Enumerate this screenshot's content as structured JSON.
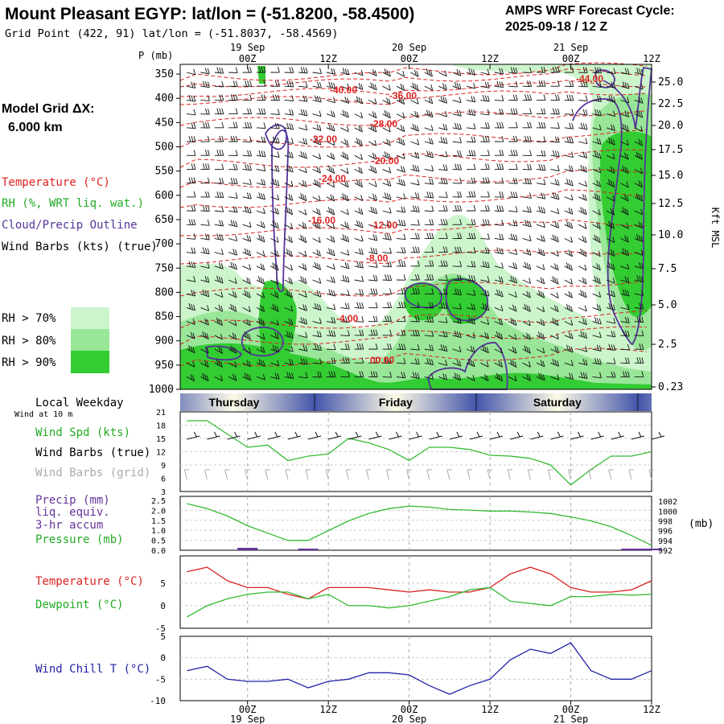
{
  "header": {
    "title": "Mount Pleasant EGYP:  lat/lon = (-51.8200, -58.4500)",
    "grid_point": "Grid Point (422, 91) lat/lon = (-51.8037, -58.4569)",
    "cycle_label": "AMPS WRF Forecast Cycle:",
    "cycle_value": "2025-09-18 / 12  Z"
  },
  "model_grid": {
    "label": "Model Grid ΔX:",
    "value": "6.000 km"
  },
  "legend_upper": {
    "temperature": "Temperature (°C)",
    "rh": "RH (%, WRT liq. wat.)",
    "cloud": "Cloud/Precip Outline",
    "wind": "Wind Barbs (kts) (true)",
    "rh70": "RH > 70%",
    "rh80": "RH > 80%",
    "rh90": "RH > 90%"
  },
  "colors": {
    "temperature": "#dd2222",
    "rh70": "#ccf5cc",
    "rh80": "#99e699",
    "rh90": "#33cc33",
    "cloud_outline": "#553399",
    "wind_speed": "#33bb33",
    "wind_barb": "#111111",
    "wind_barb_grid": "#aaaaaa",
    "precip": "#663399",
    "pressure": "#33bb33",
    "dewpoint": "#33bb33",
    "wind_chill": "#2222aa",
    "day_band": "#4455aa"
  },
  "time_axis": {
    "top_dates": [
      "19 Sep",
      "20 Sep",
      "21 Sep"
    ],
    "ticks": [
      "00Z",
      "12Z",
      "00Z",
      "12Z",
      "00Z",
      "12Z"
    ],
    "bottom_ticks": [
      "00Z",
      "12Z",
      "00Z",
      "12Z",
      "00Z",
      "12Z"
    ],
    "bottom_dates": [
      "19 Sep",
      "20 Sep",
      "21 Sep"
    ]
  },
  "cross_section": {
    "pressure_axis_label": "P (mb)",
    "pressure_levels": [
      "350",
      "400",
      "450",
      "500",
      "550",
      "600",
      "650",
      "700",
      "750",
      "800",
      "850",
      "900",
      "950",
      "1000"
    ],
    "height_axis_label": "Kft MSL",
    "height_ticks": [
      "25.0",
      "22.5",
      "20.0",
      "17.5",
      "15.0",
      "12.5",
      "10.0",
      "7.5",
      "5.0",
      "2.5",
      "0.23"
    ],
    "temp_labels": [
      "-44.00",
      "-40.00",
      "-36.00",
      "-32.00",
      "-28.00",
      "-24.00",
      "-20.00",
      "-16.00",
      "-12.00",
      "-8.00",
      "-4.00",
      "00.00"
    ]
  },
  "day_band": {
    "label": "Local Weekday",
    "days": [
      "Thursday",
      "Friday",
      "Saturday"
    ]
  },
  "panels": {
    "wind": {
      "wind_at": "Wind at 10 m",
      "label_spd": "Wind Spd (kts)",
      "label_barbs": "Wind Barbs (true)",
      "label_grid": "Wind Barbs (grid)",
      "y_ticks": [
        "21",
        "18",
        "15",
        "12",
        "9",
        "6",
        "3"
      ]
    },
    "precip": {
      "label1": "Precip (mm)",
      "label2": "liq. equiv.",
      "label3": "3-hr accum",
      "label_pressure": "Pressure (mb)",
      "y_ticks": [
        "2.5",
        "2.0",
        "1.5",
        "1.0",
        "0.5",
        "0.0"
      ],
      "y2_ticks": [
        "1002",
        "1000",
        "998",
        "996",
        "994",
        "992"
      ],
      "y2_unit": "(mb)"
    },
    "temp": {
      "label_temp": "Temperature (°C)",
      "label_dew": "Dewpoint (°C)",
      "y_ticks": [
        "5",
        "0",
        "-5"
      ]
    },
    "chill": {
      "label": "Wind Chill T (°C)",
      "y_ticks": [
        "5",
        "0",
        "-5",
        "-10"
      ]
    }
  },
  "chart_data": [
    {
      "type": "line",
      "name": "wind_speed_10m",
      "x_hours": [
        -9,
        -6,
        -3,
        0,
        3,
        6,
        9,
        12,
        15,
        18,
        21,
        24,
        27,
        30,
        33,
        36,
        39,
        42,
        45,
        48,
        51,
        54,
        57,
        60
      ],
      "series": [
        {
          "name": "Wind Spd (kts)",
          "values": [
            19,
            19,
            16,
            13,
            13.5,
            10,
            11,
            11.5,
            15,
            14,
            12.5,
            10,
            13,
            13,
            12.5,
            11.2,
            11,
            10.5,
            9,
            4.5,
            8,
            11,
            11,
            12
          ]
        }
      ],
      "ylim": [
        3,
        21
      ]
    },
    {
      "type": "line",
      "name": "pressure_precip",
      "x_hours": [
        -9,
        -6,
        -3,
        0,
        3,
        6,
        9,
        12,
        15,
        18,
        21,
        24,
        27,
        30,
        33,
        36,
        39,
        42,
        45,
        48,
        51,
        54,
        57,
        60
      ],
      "series": [
        {
          "name": "Pressure (mb)",
          "values": [
            1001.5,
            1000.5,
            999,
            997,
            995.5,
            994,
            994,
            996,
            998,
            999.5,
            1000.5,
            1001,
            1000.8,
            1000.3,
            1000.2,
            1000,
            1000,
            999.8,
            999.5,
            998.8,
            998,
            996.8,
            995,
            993
          ]
        },
        {
          "name": "Precip (mm)",
          "values": [
            0,
            0,
            0,
            0.12,
            0,
            0,
            0.08,
            0,
            0,
            0,
            0,
            0,
            0,
            0,
            0,
            0,
            0,
            0,
            0,
            0,
            0,
            0,
            0.08,
            0.08
          ]
        }
      ],
      "y2lim": [
        992,
        1003
      ],
      "ylim": [
        0,
        2.7
      ]
    },
    {
      "type": "line",
      "name": "temperature_dewpoint",
      "x_hours": [
        -9,
        -6,
        -3,
        0,
        3,
        6,
        9,
        12,
        15,
        18,
        21,
        24,
        27,
        30,
        33,
        36,
        39,
        42,
        45,
        48,
        51,
        54,
        57,
        60
      ],
      "series": [
        {
          "name": "Temperature (°C)",
          "values": [
            7.5,
            8.5,
            5.5,
            4,
            4,
            2.5,
            1.5,
            4,
            4,
            4,
            3.5,
            3,
            3.5,
            3,
            3,
            4,
            7,
            8.5,
            7,
            4,
            3,
            3,
            3.5,
            5.5
          ]
        },
        {
          "name": "Dewpoint (°C)",
          "values": [
            -2.5,
            0,
            1.5,
            2.5,
            3,
            3,
            1.5,
            2.5,
            0,
            0,
            -0.5,
            0,
            1,
            2,
            3.5,
            4,
            1,
            0.5,
            0,
            2,
            2,
            2.5,
            2.3,
            2.5
          ]
        }
      ],
      "ylim": [
        -5,
        11
      ]
    },
    {
      "type": "line",
      "name": "wind_chill",
      "x_hours": [
        -9,
        -6,
        -3,
        0,
        3,
        6,
        9,
        12,
        15,
        18,
        21,
        24,
        27,
        30,
        33,
        36,
        39,
        42,
        45,
        48,
        51,
        54,
        57,
        60
      ],
      "series": [
        {
          "name": "Wind Chill T (°C)",
          "values": [
            -3,
            -2,
            -5,
            -5.5,
            -5.5,
            -5,
            -7,
            -5.5,
            -5,
            -3.5,
            -3.5,
            -4,
            -6.5,
            -8.5,
            -6.5,
            -5,
            -0.5,
            2,
            1,
            3.5,
            -3,
            -5,
            -5,
            -3
          ]
        }
      ],
      "ylim": [
        -10,
        5
      ]
    }
  ]
}
